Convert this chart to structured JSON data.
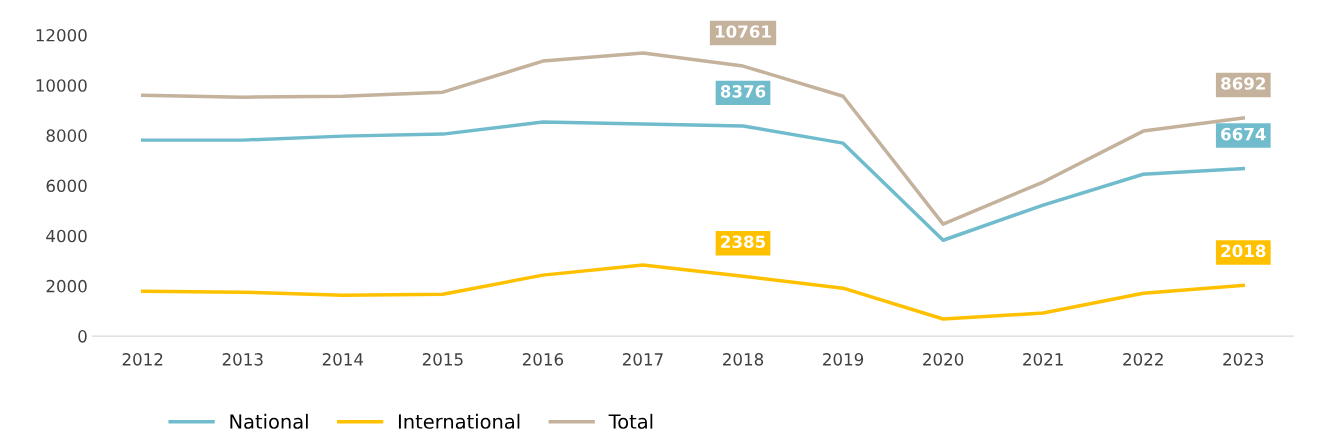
{
  "chart_data": {
    "type": "line",
    "categories": [
      "2012",
      "2013",
      "2014",
      "2015",
      "2016",
      "2017",
      "2018",
      "2019",
      "2020",
      "2021",
      "2022",
      "2023"
    ],
    "series": [
      {
        "name": "National",
        "color": "#70bccd",
        "values": [
          7810,
          7810,
          7970,
          8050,
          8530,
          8450,
          8376,
          7690,
          3820,
          5220,
          6450,
          6674
        ],
        "value_labels": [
          null,
          null,
          null,
          null,
          null,
          null,
          "8376",
          null,
          null,
          null,
          null,
          "6674"
        ]
      },
      {
        "name": "International",
        "color": "#ffc000",
        "values": [
          1790,
          1750,
          1630,
          1670,
          2430,
          2830,
          2385,
          1910,
          680,
          920,
          1710,
          2018
        ],
        "value_labels": [
          null,
          null,
          null,
          null,
          null,
          null,
          "2385",
          null,
          null,
          null,
          null,
          "2018"
        ]
      },
      {
        "name": "Total",
        "color": "#c4b29c",
        "values": [
          9600,
          9520,
          9560,
          9720,
          10960,
          11280,
          10761,
          9560,
          4460,
          6140,
          8170,
          8692
        ],
        "value_labels": [
          null,
          null,
          null,
          null,
          null,
          null,
          "10761",
          null,
          null,
          null,
          null,
          "8692"
        ]
      }
    ],
    "ylim": [
      0,
      12000
    ],
    "yticks": [
      0,
      2000,
      4000,
      6000,
      8000,
      10000,
      12000
    ],
    "grid": false,
    "legend": "bottom",
    "marker": "none",
    "line_style": "solid"
  }
}
